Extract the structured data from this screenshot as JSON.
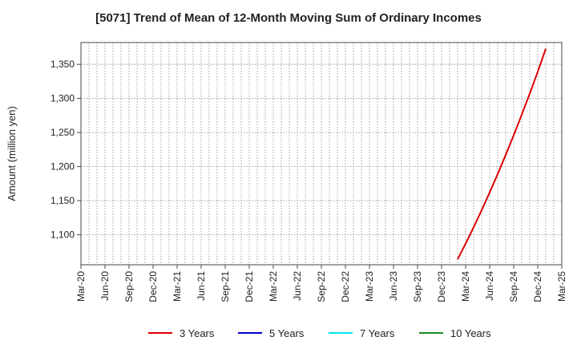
{
  "chart_data": {
    "type": "line",
    "title": "[5071]  Trend of Mean of 12-Month Moving Sum of Ordinary Incomes",
    "ylabel": "Amount (million yen)",
    "xlabel": "",
    "x_tick_labels": [
      "Mar-20",
      "Jun-20",
      "Sep-20",
      "Dec-20",
      "Mar-21",
      "Jun-21",
      "Sep-21",
      "Dec-21",
      "Mar-22",
      "Jun-22",
      "Sep-22",
      "Dec-22",
      "Mar-23",
      "Jun-23",
      "Sep-23",
      "Dec-23",
      "Mar-24",
      "Jun-24",
      "Sep-24",
      "Dec-24",
      "Mar-25"
    ],
    "y_ticks": [
      1100,
      1150,
      1200,
      1250,
      1300,
      1350
    ],
    "y_tick_labels": [
      "1,100",
      "1,150",
      "1,200",
      "1,250",
      "1,300",
      "1,350"
    ],
    "ylim": [
      1056,
      1382
    ],
    "x_range": [
      "2020-03",
      "2025-03"
    ],
    "grid": "dotted, vertical monthly and horizontal at y ticks",
    "legend_position": "bottom",
    "series": [
      {
        "name": "3 Years",
        "color": "#dd0000",
        "points": [
          {
            "x": "2024-02",
            "y": 1064
          },
          {
            "x": "2024-03",
            "y": 1087
          },
          {
            "x": "2024-04",
            "y": 1111
          },
          {
            "x": "2024-05",
            "y": 1136
          },
          {
            "x": "2024-06",
            "y": 1162
          },
          {
            "x": "2024-07",
            "y": 1189
          },
          {
            "x": "2024-08",
            "y": 1217
          },
          {
            "x": "2024-09",
            "y": 1246
          },
          {
            "x": "2024-10",
            "y": 1276
          },
          {
            "x": "2024-11",
            "y": 1307
          },
          {
            "x": "2024-12",
            "y": 1339
          },
          {
            "x": "2025-01",
            "y": 1373
          }
        ]
      },
      {
        "name": "5 Years",
        "color": "#0000cc",
        "points": []
      },
      {
        "name": "7 Years",
        "color": "#00e5ee",
        "points": []
      },
      {
        "name": "10 Years",
        "color": "#228b22",
        "points": []
      }
    ]
  }
}
